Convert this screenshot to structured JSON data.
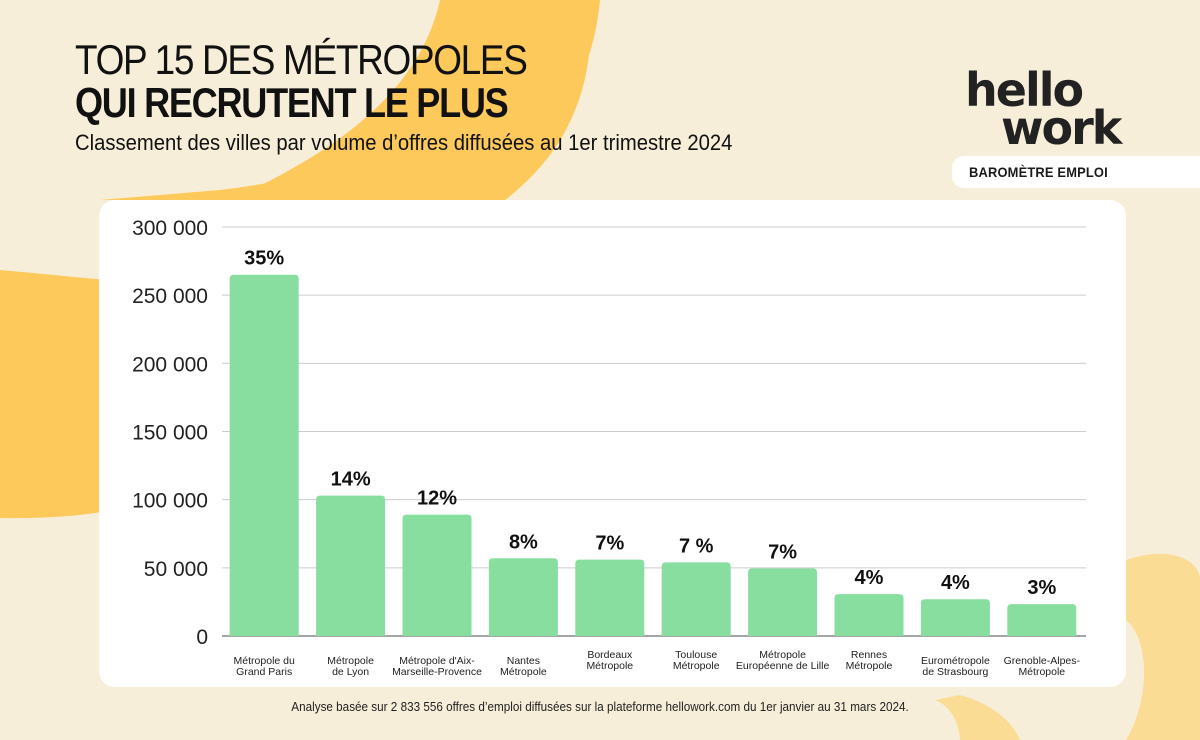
{
  "header": {
    "title_line1": "TOP 15 DES MÉTROPOLES",
    "title_line2": "QUI RECRUTENT LE PLUS",
    "subtitle": "Classement des villes par volume d’offres diffusées au 1er trimestre 2024"
  },
  "brand": {
    "logo_line1": "hello",
    "logo_line2": "work",
    "badge": "BAROMÈTRE EMPLOI"
  },
  "colors": {
    "background": "#f7eed9",
    "accent_yellow": "#fcc95a",
    "accent_light": "#fbdc94",
    "bar": "#88de9e",
    "grid": "#cccccc",
    "text": "#111111"
  },
  "footnote": "Analyse basée sur 2 833 556 offres d’emploi diffusées sur la plateforme hellowork.com du 1er janvier au 31 mars 2024.",
  "chart_data": {
    "type": "bar",
    "title": "TOP 15 DES MÉTROPOLES QUI RECRUTENT LE PLUS",
    "xlabel": "",
    "ylabel": "",
    "ylim": [
      0,
      300000
    ],
    "yticks": [
      0,
      50000,
      100000,
      150000,
      200000,
      250000,
      300000
    ],
    "ytick_labels": [
      "0",
      "50 000",
      "100 000",
      "150 000",
      "200 000",
      "250 000",
      "300 000"
    ],
    "grid": true,
    "categories": [
      [
        "Métropole du",
        "Grand Paris"
      ],
      [
        "Métropole",
        "de Lyon"
      ],
      [
        "Métropole d'Aix-",
        "Marseille-Provence"
      ],
      [
        "Nantes",
        "Métropole"
      ],
      [
        "Bordeaux",
        "Métropole"
      ],
      [
        "Toulouse",
        "Métropole"
      ],
      [
        "Métropole",
        "Européenne de Lille"
      ],
      [
        "Rennes",
        "Métropole"
      ],
      [
        "Eurométropole",
        "de Strasbourg"
      ],
      [
        "Grenoble-Alpes-",
        "Métropole"
      ]
    ],
    "values": [
      265000,
      103000,
      89000,
      57000,
      56000,
      54000,
      49600,
      30700,
      27000,
      23400
    ],
    "data_labels": [
      "35%",
      "14%",
      "12%",
      "8%",
      "7%",
      "7 %",
      "7%",
      "4%",
      "4%",
      "3%"
    ]
  }
}
